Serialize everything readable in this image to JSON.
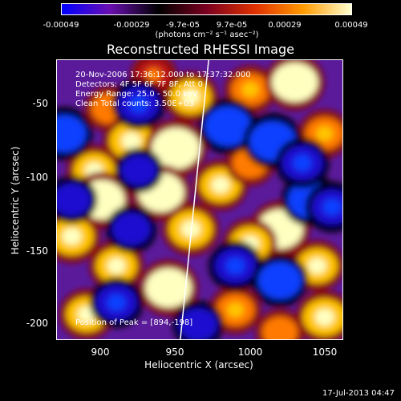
{
  "colorbar": {
    "ticks": [
      "-0.00049",
      "-0.00029",
      "-9.7e-05",
      "9.7e-05",
      "0.00029",
      "0.00049"
    ],
    "units_label": "(photons cm⁻² s⁻¹ asec⁻²)",
    "colors": [
      "#0000ff",
      "#6a0fb0",
      "#000000",
      "#7a0020",
      "#e03000",
      "#ff9a00",
      "#ffffd0"
    ]
  },
  "chart_data": {
    "type": "heatmap",
    "title": "Reconstructed RHESSI Image",
    "xlabel": "Heliocentric X (arcsec)",
    "ylabel": "Heliocentric Y (arcsec)",
    "xlim": [
      870,
      1062
    ],
    "ylim": [
      -215,
      -25
    ],
    "x_ticks": [
      "900",
      "950",
      "1000",
      "1050"
    ],
    "y_ticks": [
      "-50",
      "-100",
      "-150",
      "-200"
    ],
    "x_tick_values": [
      900,
      950,
      1000,
      1050
    ],
    "y_tick_values": [
      -50,
      -100,
      -150,
      -200
    ],
    "value_range": [
      -0.00049,
      0.00049
    ],
    "limb_line": [
      [
        953,
        -215
      ],
      [
        972,
        -25
      ]
    ],
    "peak": [
      894,
      -198
    ],
    "blobs": [
      {
        "x": 905,
        "y": -58,
        "v": 0.00025
      },
      {
        "x": 935,
        "y": -35,
        "v": 0.0002
      },
      {
        "x": 960,
        "y": -50,
        "v": 0.00035
      },
      {
        "x": 1000,
        "y": -45,
        "v": 0.0003
      },
      {
        "x": 1030,
        "y": -40,
        "v": 0.00045
      },
      {
        "x": 1050,
        "y": -75,
        "v": 0.0003
      },
      {
        "x": 920,
        "y": -80,
        "v": 0.0004
      },
      {
        "x": 950,
        "y": -85,
        "v": 0.00049
      },
      {
        "x": 895,
        "y": -100,
        "v": 0.00035
      },
      {
        "x": 900,
        "y": -120,
        "v": 0.00045
      },
      {
        "x": 940,
        "y": -115,
        "v": 0.00045
      },
      {
        "x": 980,
        "y": -110,
        "v": 0.00035
      },
      {
        "x": 1000,
        "y": -95,
        "v": 0.00025
      },
      {
        "x": 1020,
        "y": -140,
        "v": 0.00045
      },
      {
        "x": 1000,
        "y": -150,
        "v": 0.00035
      },
      {
        "x": 960,
        "y": -140,
        "v": 0.0004
      },
      {
        "x": 880,
        "y": -145,
        "v": 0.0004
      },
      {
        "x": 910,
        "y": -165,
        "v": 0.00035
      },
      {
        "x": 945,
        "y": -180,
        "v": 0.00045
      },
      {
        "x": 1045,
        "y": -165,
        "v": 0.00035
      },
      {
        "x": 1050,
        "y": -200,
        "v": 0.0004
      },
      {
        "x": 1020,
        "y": -210,
        "v": 0.00025
      },
      {
        "x": 890,
        "y": -198,
        "v": 0.00035
      },
      {
        "x": 990,
        "y": -195,
        "v": 0.0003
      },
      {
        "x": 985,
        "y": -70,
        "v": -0.00045
      },
      {
        "x": 925,
        "y": -55,
        "v": -0.00035
      },
      {
        "x": 1015,
        "y": -80,
        "v": -0.00045
      },
      {
        "x": 875,
        "y": -75,
        "v": -0.0004
      },
      {
        "x": 880,
        "y": -120,
        "v": -0.0003
      },
      {
        "x": 1040,
        "y": -120,
        "v": -0.0004
      },
      {
        "x": 1055,
        "y": -125,
        "v": -0.00035
      },
      {
        "x": 920,
        "y": -140,
        "v": -0.0003
      },
      {
        "x": 990,
        "y": -165,
        "v": -0.00035
      },
      {
        "x": 1020,
        "y": -175,
        "v": -0.0004
      },
      {
        "x": 910,
        "y": -190,
        "v": -0.00035
      },
      {
        "x": 965,
        "y": -205,
        "v": -0.0003
      },
      {
        "x": 1035,
        "y": -95,
        "v": -0.00035
      },
      {
        "x": 925,
        "y": -100,
        "v": -0.00025
      }
    ]
  },
  "annotations": {
    "time": "20-Nov-2006 17:36:12.000 to 17:37:32.000",
    "detectors": "Detectors: 4F 5F 6F 7F 8F, Att 0",
    "energy": "Energy Range: 25.0 - 50.0 keV",
    "clean": "Clean    Total counts: 3.50E+03",
    "peak": "Position of Peak = [894,-198]"
  },
  "footer": {
    "date": "17-Jul-2013 04:47"
  }
}
